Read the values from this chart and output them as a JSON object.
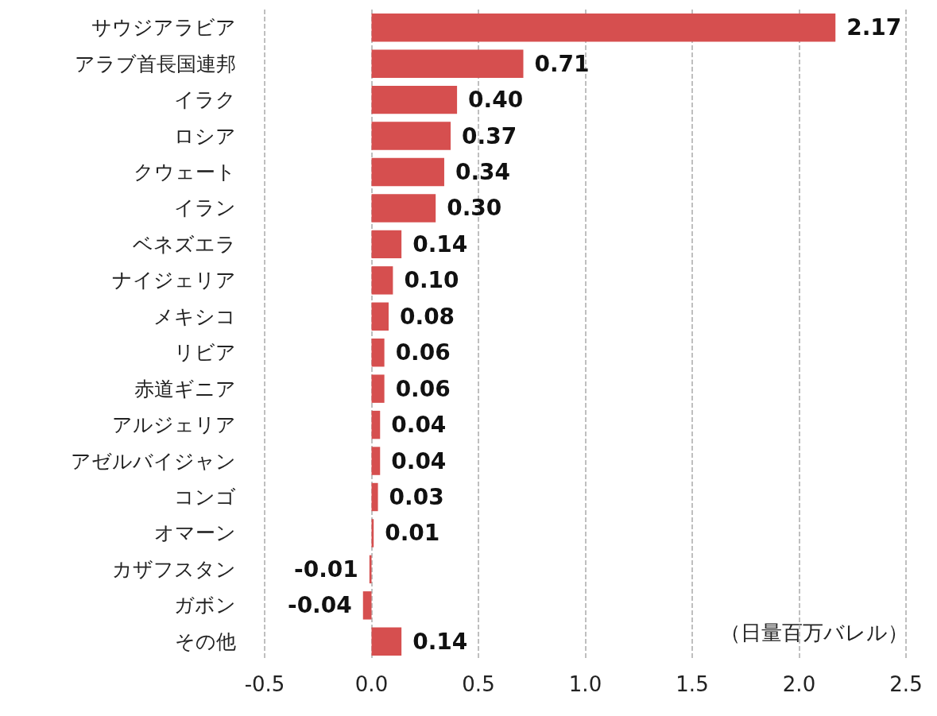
{
  "chart_data": {
    "type": "bar",
    "orientation": "horizontal",
    "categories": [
      "サウジアラビア",
      "アラブ首長国連邦",
      "イラク",
      "ロシア",
      "クウェート",
      "イラン",
      "ベネズエラ",
      "ナイジェリア",
      "メキシコ",
      "リビア",
      "赤道ギニア",
      "アルジェリア",
      "アゼルバイジャン",
      "コンゴ",
      "オマーン",
      "カザフスタン",
      "ガボン",
      "その他"
    ],
    "values": [
      2.17,
      0.71,
      0.4,
      0.37,
      0.34,
      0.3,
      0.14,
      0.1,
      0.08,
      0.06,
      0.06,
      0.04,
      0.04,
      0.03,
      0.01,
      -0.01,
      -0.04,
      0.14
    ],
    "value_labels": [
      "2.17",
      "0.71",
      "0.40",
      "0.37",
      "0.34",
      "0.30",
      "0.14",
      "0.10",
      "0.08",
      "0.06",
      "0.06",
      "0.04",
      "0.04",
      "0.03",
      "0.01",
      "-0.01",
      "-0.04",
      "0.14"
    ],
    "color": "#d64f4f",
    "xlim": [
      -0.5,
      2.5
    ],
    "xticks": [
      "-0.5",
      {
        "value": 0,
        "label": "0.0"
      },
      "0.5",
      {
        "value": 1,
        "label": "1.0"
      },
      "1.5",
      {
        "value": 2,
        "label": "2.0"
      },
      "2.5"
    ],
    "grid": "x",
    "annotations": [
      "（日量百万バレル）"
    ]
  }
}
